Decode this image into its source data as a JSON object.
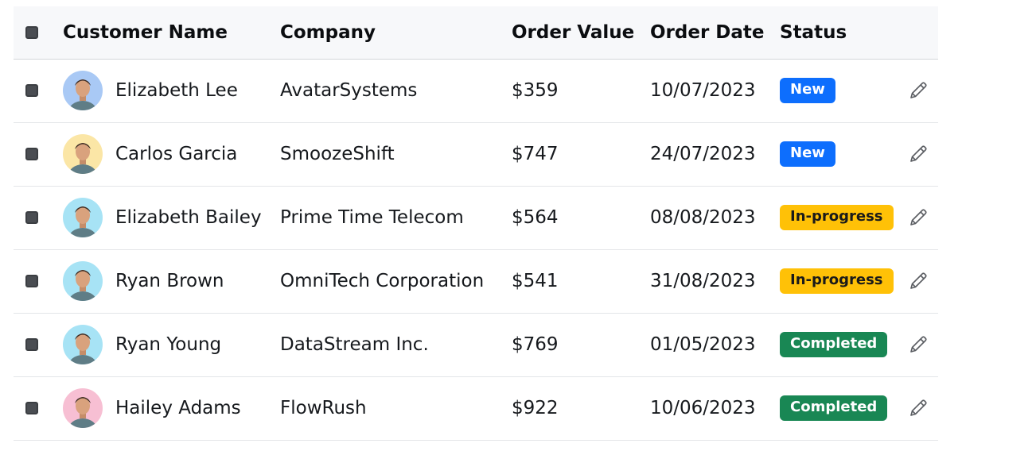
{
  "columns": {
    "customer_name": "Customer Name",
    "company": "Company",
    "order_value": "Order Value",
    "order_date": "Order Date",
    "status": "Status"
  },
  "rows": [
    {
      "name": "Elizabeth Lee",
      "company": "AvatarSystems",
      "value": "$359",
      "date": "10/07/2023",
      "status": "New",
      "status_kind": "new",
      "avatar_bg": "#a9c9f5"
    },
    {
      "name": "Carlos Garcia",
      "company": "SmoozeShift",
      "value": "$747",
      "date": "24/07/2023",
      "status": "New",
      "status_kind": "new",
      "avatar_bg": "#fbe6a6"
    },
    {
      "name": "Elizabeth Bailey",
      "company": "Prime Time Telecom",
      "value": "$564",
      "date": "08/08/2023",
      "status": "In-progress",
      "status_kind": "progress",
      "avatar_bg": "#a7e3f5"
    },
    {
      "name": "Ryan Brown",
      "company": "OmniTech Corporation",
      "value": "$541",
      "date": "31/08/2023",
      "status": "In-progress",
      "status_kind": "progress",
      "avatar_bg": "#a7e3f5"
    },
    {
      "name": "Ryan Young",
      "company": "DataStream Inc.",
      "value": "$769",
      "date": "01/05/2023",
      "status": "Completed",
      "status_kind": "done",
      "avatar_bg": "#a7e3f5"
    },
    {
      "name": "Hailey Adams",
      "company": "FlowRush",
      "value": "$922",
      "date": "10/06/2023",
      "status": "Completed",
      "status_kind": "done",
      "avatar_bg": "#f7bfd3"
    }
  ],
  "colors": {
    "badge_new": "#0d6efd",
    "badge_in_progress": "#ffc107",
    "badge_completed": "#198754",
    "header_bg": "#f7f8fa"
  },
  "icons": {
    "edit": "pencil-icon",
    "select": "checkbox"
  }
}
